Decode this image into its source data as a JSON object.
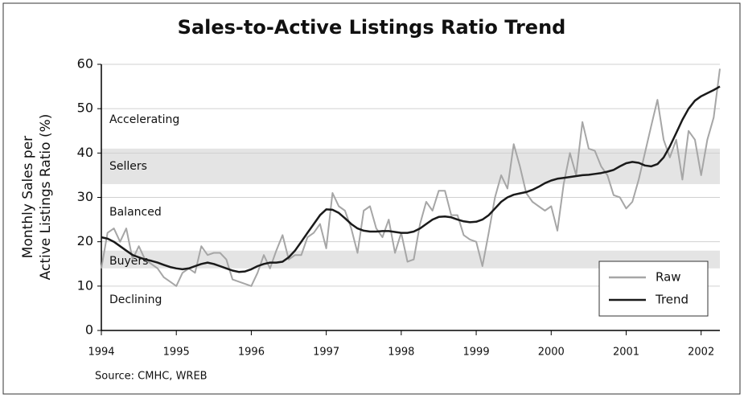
{
  "chart_data": {
    "type": "line",
    "title": "Sales-to-Active Listings Ratio Trend",
    "y_label": [
      "Monthly Sales per",
      "Active Listings Ratio (%)"
    ],
    "source": "Source: CMHC, WREB",
    "annotations": [
      "Accelerating",
      "Sellers",
      "Balanced",
      "Buyers",
      "Declining"
    ],
    "bands": [
      [
        33,
        41
      ],
      [
        14,
        18
      ]
    ],
    "band_color": "#e4e4e4",
    "grid": true,
    "legend": "lower right",
    "xlim": [
      1994,
      2002.25
    ],
    "xticks": [
      1994,
      1995,
      1996,
      1997,
      1998,
      1999,
      2000,
      2001,
      2002
    ],
    "ylim": [
      0,
      60
    ],
    "yticks": [
      0,
      10,
      20,
      30,
      40,
      50,
      60
    ],
    "x": [
      1994,
      1994.083,
      1994.167,
      1994.25,
      1994.333,
      1994.417,
      1994.5,
      1994.583,
      1994.667,
      1994.75,
      1994.833,
      1994.917,
      1995,
      1995.083,
      1995.167,
      1995.25,
      1995.333,
      1995.417,
      1995.5,
      1995.583,
      1995.667,
      1995.75,
      1995.833,
      1995.917,
      1996,
      1996.083,
      1996.167,
      1996.25,
      1996.333,
      1996.417,
      1996.5,
      1996.583,
      1996.667,
      1996.75,
      1996.833,
      1996.917,
      1997,
      1997.083,
      1997.167,
      1997.25,
      1997.333,
      1997.417,
      1997.5,
      1997.583,
      1997.667,
      1997.75,
      1997.833,
      1997.917,
      1998,
      1998.083,
      1998.167,
      1998.25,
      1998.333,
      1998.417,
      1998.5,
      1998.583,
      1998.667,
      1998.75,
      1998.833,
      1998.917,
      1999,
      1999.083,
      1999.167,
      1999.25,
      1999.333,
      1999.417,
      1999.5,
      1999.583,
      1999.667,
      1999.75,
      1999.833,
      1999.917,
      2000,
      2000.083,
      2000.167,
      2000.25,
      2000.333,
      2000.417,
      2000.5,
      2000.583,
      2000.667,
      2000.75,
      2000.833,
      2000.917,
      2001,
      2001.083,
      2001.167,
      2001.25,
      2001.333,
      2001.417,
      2001.5,
      2001.583,
      2001.667,
      2001.75,
      2001.833,
      2001.917,
      2002,
      2002.083,
      2002.167,
      2002.25
    ],
    "series": [
      {
        "name": "Raw",
        "color": "#a6a6a6",
        "values": [
          14,
          22,
          23,
          20,
          23,
          16,
          19,
          16,
          15,
          14,
          12,
          11,
          10,
          13,
          14,
          13,
          19,
          17,
          17.5,
          17.5,
          16,
          11.5,
          11,
          10.5,
          10,
          13,
          17,
          14,
          18,
          21.5,
          16,
          17,
          17,
          21,
          22,
          24,
          18.5,
          31,
          28,
          27,
          23,
          17.5,
          27,
          28,
          23,
          21,
          25,
          17.5,
          22,
          15.5,
          16,
          24,
          29,
          27,
          31.5,
          31.5,
          26,
          26,
          21.5,
          20.5,
          20,
          14.5,
          22,
          30,
          35,
          32,
          42,
          37,
          31,
          29,
          28,
          27,
          28,
          22.5,
          33,
          40,
          35,
          47,
          41,
          40.5,
          37,
          35,
          30.5,
          30,
          27.5,
          29,
          34,
          40,
          46,
          52,
          43,
          39,
          43,
          34,
          45,
          43,
          35,
          43,
          48,
          59
        ]
      },
      {
        "name": "Trend",
        "color": "#1a1a1a",
        "values": [
          21,
          20.7,
          20,
          19,
          18,
          17,
          16.5,
          16,
          15.7,
          15.3,
          14.8,
          14.3,
          14,
          13.8,
          14,
          14.5,
          15,
          15.3,
          15,
          14.5,
          14,
          13.5,
          13.2,
          13.3,
          13.8,
          14.5,
          15,
          15.3,
          15.3,
          15.5,
          16.5,
          18,
          20,
          22,
          24,
          26,
          27.3,
          27.2,
          26.5,
          25.3,
          24,
          23,
          22.5,
          22.3,
          22.3,
          22.4,
          22.4,
          22.2,
          22,
          22,
          22.3,
          23,
          24,
          25,
          25.6,
          25.7,
          25.5,
          25,
          24.6,
          24.4,
          24.5,
          25,
          26,
          27.5,
          29,
          30,
          30.6,
          30.9,
          31.2,
          31.7,
          32.4,
          33.2,
          33.8,
          34.2,
          34.4,
          34.6,
          34.8,
          35,
          35.1,
          35.3,
          35.5,
          35.8,
          36.2,
          37,
          37.7,
          38,
          37.8,
          37.2,
          37,
          37.5,
          39,
          41.5,
          44.5,
          47.5,
          50,
          51.8,
          52.8,
          53.5,
          54.2,
          55
        ]
      }
    ]
  }
}
